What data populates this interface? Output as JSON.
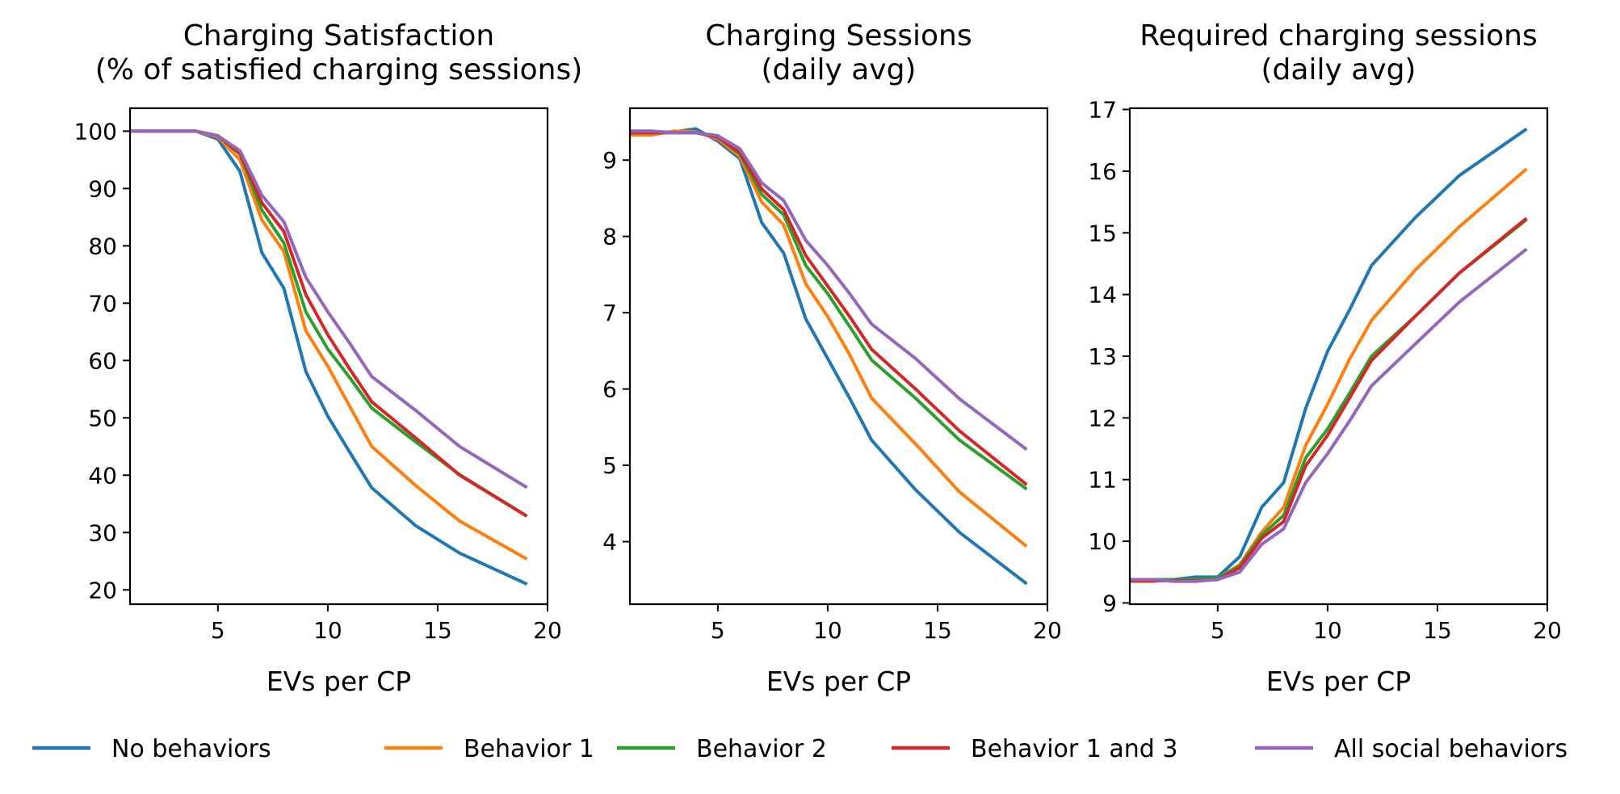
{
  "chart_data": [
    {
      "type": "line",
      "title": [
        "Charging Satisfaction",
        "(% of satisfied charging sessions)"
      ],
      "xlabel": "EVs per CP",
      "ylabel": "",
      "xlim": [
        1,
        20
      ],
      "ylim": [
        17.5,
        104
      ],
      "xticks": [
        5,
        10,
        15,
        20
      ],
      "yticks": [
        20,
        30,
        40,
        50,
        60,
        70,
        80,
        90,
        100
      ],
      "x": [
        1,
        2,
        3,
        4,
        5,
        6,
        7,
        8,
        9,
        10,
        11,
        12,
        14,
        16,
        19
      ],
      "series": [
        {
          "name": "No behaviors",
          "values": [
            100,
            100,
            100,
            100,
            98.6,
            93,
            78.8,
            72.6,
            58.1,
            50.3,
            44,
            37.8,
            31.2,
            26.4,
            21.1
          ]
        },
        {
          "name": "Behavior 1",
          "values": [
            100,
            100,
            100,
            100,
            99,
            95,
            84.5,
            79,
            65.2,
            59,
            52,
            45,
            38.2,
            32,
            25.5
          ]
        },
        {
          "name": "Behavior 2",
          "values": [
            100,
            100,
            100,
            100,
            99.2,
            96,
            86.2,
            80.5,
            68.5,
            62,
            57,
            51.7,
            45.8,
            40.1,
            33
          ]
        },
        {
          "name": "Behavior 1 and 3",
          "values": [
            100,
            100,
            100,
            100,
            99.2,
            96.2,
            87.5,
            82.5,
            71.5,
            64.5,
            58.5,
            52.8,
            46.5,
            40,
            33
          ]
        },
        {
          "name": "All social behaviors",
          "values": [
            100,
            100,
            100,
            100,
            99.2,
            96.6,
            88.8,
            84.2,
            74.5,
            68.5,
            63,
            57.2,
            51.3,
            45,
            38
          ]
        }
      ]
    },
    {
      "type": "line",
      "title": [
        "Charging Sessions",
        "(daily avg)"
      ],
      "xlabel": "EVs per CP",
      "ylabel": "",
      "xlim": [
        1,
        20
      ],
      "ylim": [
        3.18,
        9.68
      ],
      "xticks": [
        5,
        10,
        15,
        20
      ],
      "yticks": [
        4,
        5,
        6,
        7,
        8,
        9
      ],
      "x": [
        1,
        2,
        3,
        4,
        5,
        6,
        7,
        8,
        9,
        10,
        11,
        12,
        14,
        16,
        19
      ],
      "series": [
        {
          "name": "No behaviors",
          "values": [
            9.38,
            9.36,
            9.37,
            9.41,
            9.25,
            9.02,
            8.18,
            7.78,
            6.92,
            6.4,
            5.88,
            5.33,
            4.68,
            4.12,
            3.46
          ]
        },
        {
          "name": "Behavior 1",
          "values": [
            9.33,
            9.33,
            9.38,
            9.37,
            9.28,
            9.05,
            8.45,
            8.15,
            7.38,
            6.95,
            6.45,
            5.88,
            5.28,
            4.65,
            3.95
          ]
        },
        {
          "name": "Behavior 2",
          "values": [
            9.36,
            9.36,
            9.36,
            9.36,
            9.3,
            9.08,
            8.55,
            8.28,
            7.62,
            7.25,
            6.82,
            6.38,
            5.88,
            5.33,
            4.7
          ]
        },
        {
          "name": "Behavior 1 and 3",
          "values": [
            9.36,
            9.36,
            9.36,
            9.36,
            9.3,
            9.1,
            8.62,
            8.35,
            7.75,
            7.35,
            6.95,
            6.52,
            6,
            5.45,
            4.76
          ]
        },
        {
          "name": "All social behaviors",
          "values": [
            9.38,
            9.38,
            9.36,
            9.36,
            9.32,
            9.15,
            8.7,
            8.47,
            7.95,
            7.62,
            7.25,
            6.85,
            6.4,
            5.87,
            5.22
          ]
        }
      ]
    },
    {
      "type": "line",
      "title": [
        "Required charging sessions",
        "(daily avg)"
      ],
      "xlabel": "EVs per CP",
      "ylabel": "",
      "xlim": [
        1,
        20
      ],
      "ylim": [
        8.98,
        17.02
      ],
      "xticks": [
        5,
        10,
        15,
        20
      ],
      "yticks": [
        9,
        10,
        11,
        12,
        13,
        14,
        15,
        16,
        17
      ],
      "x": [
        1,
        2,
        3,
        4,
        5,
        6,
        7,
        8,
        9,
        10,
        11,
        12,
        14,
        16,
        19
      ],
      "series": [
        {
          "name": "No behaviors",
          "values": [
            9.38,
            9.38,
            9.38,
            9.42,
            9.42,
            9.75,
            10.55,
            10.95,
            12.15,
            13.08,
            13.75,
            14.47,
            15.25,
            15.93,
            16.67
          ]
        },
        {
          "name": "Behavior 1",
          "values": [
            9.35,
            9.35,
            9.38,
            9.38,
            9.4,
            9.62,
            10.15,
            10.55,
            11.55,
            12.22,
            12.95,
            13.58,
            14.4,
            15.1,
            16.02
          ]
        },
        {
          "name": "Behavior 2",
          "values": [
            9.38,
            9.38,
            9.38,
            9.38,
            9.4,
            9.6,
            10.1,
            10.42,
            11.35,
            11.82,
            12.4,
            13,
            13.65,
            14.35,
            15.2
          ]
        },
        {
          "name": "Behavior 1 and 3",
          "values": [
            9.36,
            9.36,
            9.36,
            9.36,
            9.38,
            9.57,
            10.05,
            10.32,
            11.22,
            11.72,
            12.32,
            12.93,
            13.65,
            14.35,
            15.22
          ]
        },
        {
          "name": "All social behaviors",
          "values": [
            9.38,
            9.38,
            9.35,
            9.35,
            9.38,
            9.5,
            9.95,
            10.2,
            10.95,
            11.42,
            11.95,
            12.52,
            13.2,
            13.88,
            14.72
          ]
        }
      ]
    }
  ],
  "legend": {
    "placement": "bottom",
    "items": [
      "No behaviors",
      "Behavior 1",
      "Behavior 2",
      "Behavior 1 and 3",
      "All social behaviors"
    ]
  },
  "colors": [
    "#1f77b4",
    "#ff7f0e",
    "#2ca02c",
    "#d62728",
    "#9467bd"
  ]
}
